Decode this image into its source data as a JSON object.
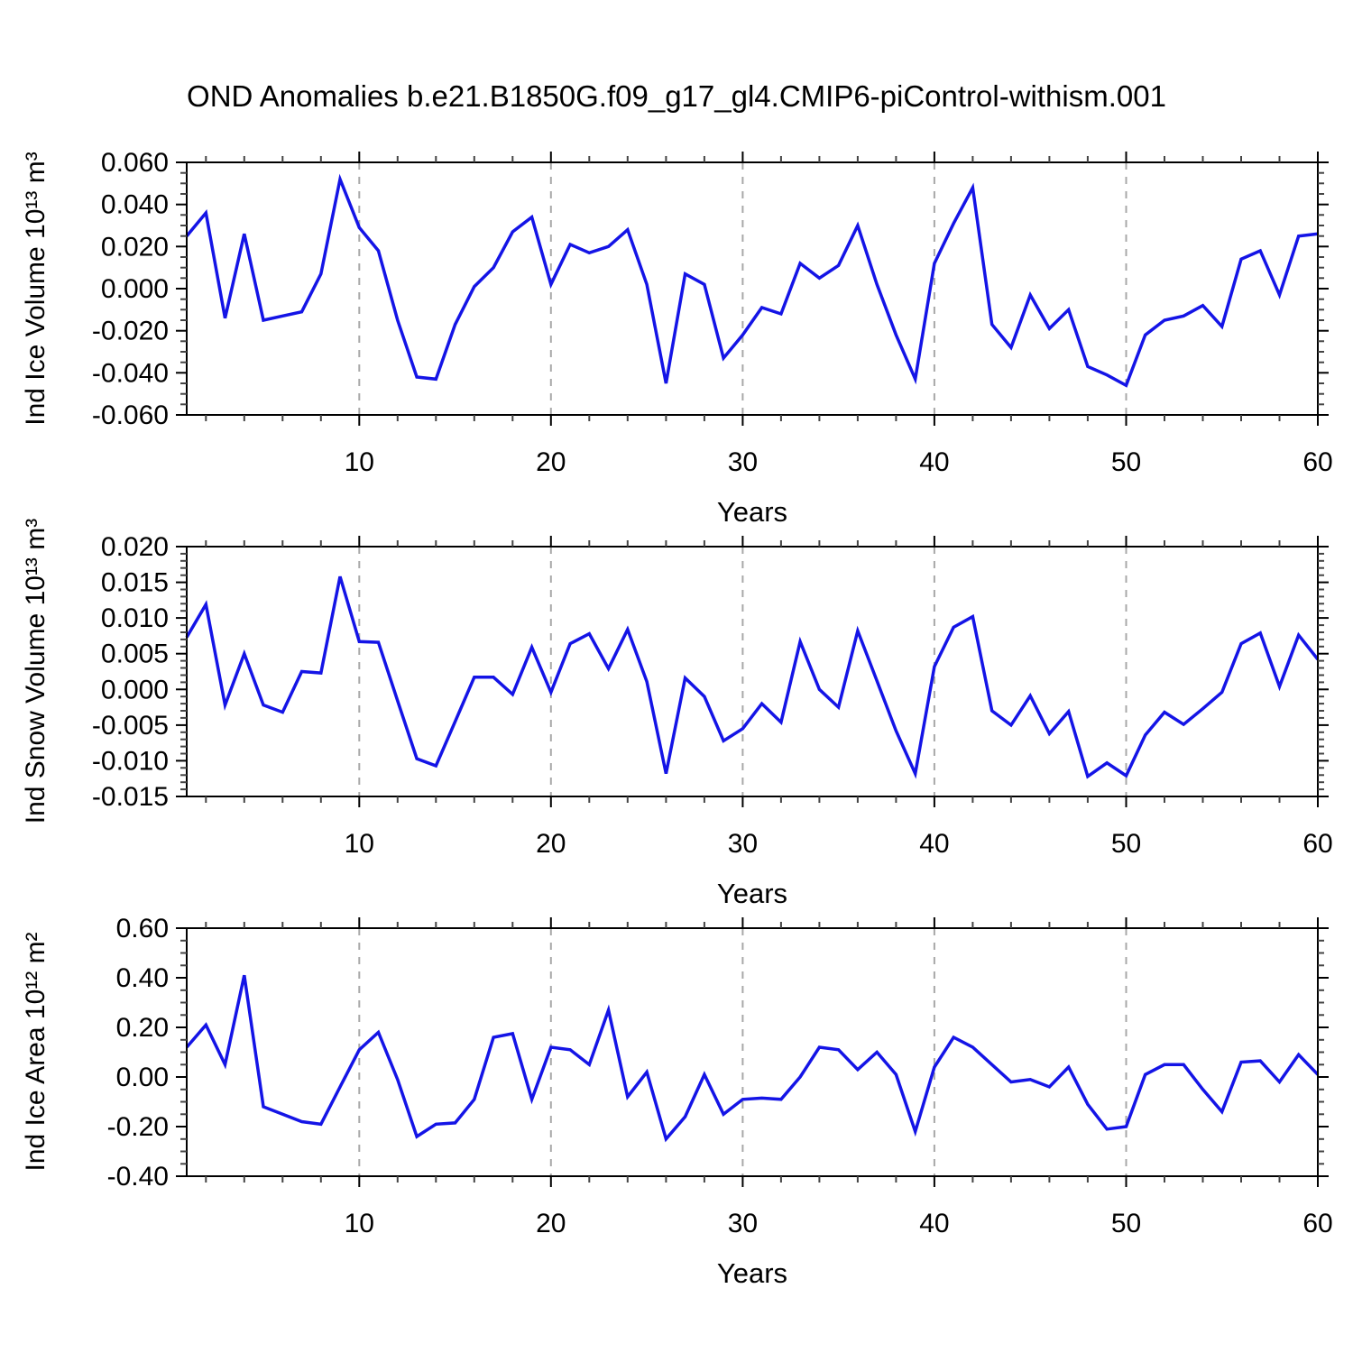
{
  "title": "OND Anomalies b.e21.B1850G.f09_g17_gl4.CMIP6-piControl-withism.001",
  "colors": {
    "line": "#1414e6",
    "axis": "#000000",
    "minor_tick": "#444444",
    "grid": "#a8a8a8",
    "text": "#000000",
    "background": "#ffffff"
  },
  "x_axis": {
    "label": "Years",
    "range": [
      1,
      60
    ],
    "major_ticks": [
      10,
      20,
      30,
      40,
      50,
      60
    ],
    "tick_labels": [
      "10",
      "20",
      "30",
      "40",
      "50",
      "60"
    ],
    "minor_step": 2,
    "gridlines": [
      10,
      20,
      30,
      40,
      50
    ]
  },
  "chart_data": [
    {
      "type": "line",
      "name": "ind-ice-volume",
      "ylabel": "Ind Ice Volume 10¹³ m³",
      "ylim": [
        -0.06,
        0.06
      ],
      "ytick_values": [
        0.06,
        0.04,
        0.02,
        0.0,
        -0.02,
        -0.04,
        -0.06
      ],
      "ytick_labels": [
        "0.060",
        "0.040",
        "0.020",
        "0.000",
        "-0.020",
        "-0.040",
        "-0.060"
      ],
      "minor_y_step": 0.005,
      "grid": true,
      "legend": "none",
      "x_years": [
        1,
        60
      ],
      "values": [
        0.025,
        0.036,
        -0.014,
        0.026,
        -0.015,
        -0.013,
        -0.011,
        0.007,
        0.052,
        0.029,
        0.018,
        -0.015,
        -0.042,
        -0.043,
        -0.017,
        0.001,
        0.01,
        0.027,
        0.034,
        0.002,
        0.021,
        0.017,
        0.02,
        0.028,
        0.002,
        -0.045,
        0.007,
        0.002,
        -0.033,
        -0.022,
        -0.009,
        -0.012,
        0.012,
        0.005,
        0.011,
        0.03,
        0.002,
        -0.022,
        -0.043,
        0.012,
        0.031,
        0.048,
        -0.017,
        -0.028,
        -0.003,
        -0.019,
        -0.01,
        -0.037,
        -0.041,
        -0.046,
        -0.022,
        -0.015,
        -0.013,
        -0.008,
        -0.018,
        0.014,
        0.018,
        -0.003,
        0.025,
        0.026
      ]
    },
    {
      "type": "line",
      "name": "ind-snow-volume",
      "ylabel": "Ind Snow Volume 10¹³ m³",
      "ylim": [
        -0.015,
        0.02
      ],
      "ytick_values": [
        0.02,
        0.015,
        0.01,
        0.005,
        0.0,
        -0.005,
        -0.01,
        -0.015
      ],
      "ytick_labels": [
        "0.020",
        "0.015",
        "0.010",
        "0.005",
        "0.000",
        "-0.005",
        "-0.010",
        "-0.015"
      ],
      "minor_y_step": 0.001,
      "grid": true,
      "legend": "none",
      "x_years": [
        1,
        60
      ],
      "values": [
        0.0073,
        0.0119,
        -0.0022,
        0.005,
        -0.0022,
        -0.0032,
        0.0025,
        0.0023,
        0.0158,
        0.0067,
        0.0066,
        -0.0016,
        -0.0097,
        -0.0107,
        -0.0045,
        0.0017,
        0.0017,
        -0.0007,
        0.0059,
        -0.0004,
        0.0064,
        0.0078,
        0.0029,
        0.0084,
        0.0011,
        -0.0118,
        0.0016,
        -0.001,
        -0.0072,
        -0.0055,
        -0.002,
        -0.0046,
        0.0067,
        0.0,
        -0.0025,
        0.0082,
        0.0012,
        -0.0058,
        -0.0118,
        0.0032,
        0.0087,
        0.0102,
        -0.003,
        -0.005,
        -0.0009,
        -0.0062,
        -0.0031,
        -0.0122,
        -0.0103,
        -0.0121,
        -0.0064,
        -0.0032,
        -0.0049,
        -0.0027,
        -0.0004,
        0.0064,
        0.0079,
        0.0004,
        0.0076,
        0.0042
      ]
    },
    {
      "type": "line",
      "name": "ind-ice-area",
      "ylabel": "Ind Ice Area 10¹² m²",
      "ylim": [
        -0.4,
        0.6
      ],
      "ytick_values": [
        0.6,
        0.4,
        0.2,
        0.0,
        -0.2,
        -0.4
      ],
      "ytick_labels": [
        "0.60",
        "0.40",
        "0.20",
        "0.00",
        "-0.20",
        "-0.40"
      ],
      "minor_y_step": 0.05,
      "grid": true,
      "legend": "none",
      "x_years": [
        1,
        60
      ],
      "values": [
        0.12,
        0.21,
        0.05,
        0.41,
        -0.12,
        -0.15,
        -0.18,
        -0.19,
        -0.04,
        0.11,
        0.18,
        -0.01,
        -0.24,
        -0.19,
        -0.185,
        -0.09,
        0.16,
        0.175,
        -0.09,
        0.12,
        0.11,
        0.05,
        0.27,
        -0.08,
        0.02,
        -0.25,
        -0.16,
        0.01,
        -0.15,
        -0.09,
        -0.085,
        -0.09,
        0.0,
        0.12,
        0.11,
        0.03,
        0.1,
        0.01,
        -0.22,
        0.04,
        0.16,
        0.12,
        0.05,
        -0.02,
        -0.01,
        -0.04,
        0.04,
        -0.11,
        -0.21,
        -0.2,
        0.01,
        0.05,
        0.05,
        -0.05,
        -0.14,
        0.06,
        0.065,
        -0.02,
        0.09,
        0.01
      ]
    }
  ]
}
